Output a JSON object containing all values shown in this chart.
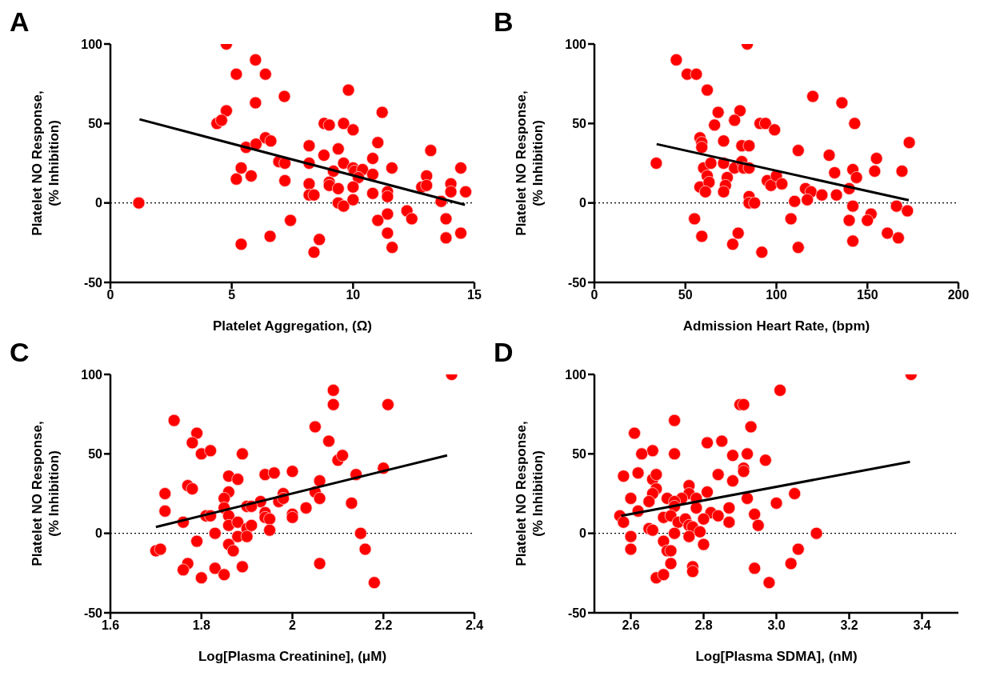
{
  "chart_data": [
    {
      "type": "scatter",
      "title": "A",
      "xlabel": "Platelet Aggregation, (Ω)",
      "ylabel": "Platelet NO Response,\n(% Inhibition)",
      "xlim": [
        0,
        15
      ],
      "xticks": [
        0,
        5,
        10,
        15
      ],
      "ylim": [
        -50,
        100
      ],
      "yticks": [
        -50,
        0,
        50,
        100
      ],
      "ref_lines": [
        {
          "axis": "y",
          "value": 0,
          "line_style": "dotted",
          "color": "#000000"
        }
      ],
      "series": [
        {
          "type": "scatter",
          "marker": "circle",
          "color": "#ff0000",
          "x": [
            1.17,
            4.78,
            5.98,
            5.19,
            6.39,
            7.17,
            5.98,
            9.81,
            4.78,
            4.39,
            4.58,
            11.2,
            8.81,
            9.02,
            9.61,
            10.0,
            6.39,
            6.61,
            5.59,
            6.0,
            8.19,
            11.02,
            9.39,
            13.2,
            8.8,
            6.94,
            7.19,
            8.19,
            9.61,
            10.81,
            5.39,
            11.6,
            14.44,
            9.19,
            10.0,
            10.06,
            10.39,
            10.81,
            10.22,
            5.19,
            5.8,
            7.19,
            13.03,
            8.19,
            9.02,
            9.02,
            12.83,
            13.03,
            14.03,
            14.03,
            14.64,
            9.39,
            10.0,
            8.19,
            8.39,
            10.81,
            11.42,
            11.42,
            13.63,
            9.39,
            9.61,
            10.0,
            12.22,
            12.42,
            11.42,
            11.02,
            7.42,
            13.83,
            6.58,
            11.42,
            13.83,
            14.44,
            5.39,
            8.61,
            8.39,
            11.61
          ],
          "values": [
            0,
            100,
            90,
            81,
            81,
            67,
            63,
            71,
            58,
            50,
            52,
            57,
            50,
            49,
            50,
            46,
            41,
            39,
            35,
            37,
            36,
            38,
            34,
            33,
            30,
            26,
            25,
            25,
            25,
            28,
            22,
            22,
            22,
            20,
            22,
            20,
            21,
            18,
            16,
            15,
            17,
            14,
            17,
            12,
            13,
            11,
            10,
            11,
            12,
            7,
            7,
            9,
            10,
            5,
            5,
            6,
            7,
            4,
            1,
            0,
            -2,
            2,
            -5,
            -10,
            -7,
            -11,
            -11,
            -10,
            -21,
            -19,
            -22,
            -19,
            -26,
            -23,
            -31,
            -28
          ]
        },
        {
          "type": "line",
          "marker": "none",
          "color": "#000000",
          "x": [
            1.2,
            14.61
          ],
          "values": [
            52.6,
            -1.2
          ]
        }
      ]
    },
    {
      "type": "scatter",
      "title": "B",
      "xlabel": "Admission Heart Rate, (bpm)",
      "ylabel": "Platelet NO Response,\n(% Inhibition)",
      "xlim": [
        0,
        200
      ],
      "xticks": [
        0,
        50,
        100,
        150,
        200
      ],
      "ylim": [
        -50,
        100
      ],
      "yticks": [
        -50,
        0,
        50,
        100
      ],
      "ref_lines": [
        {
          "axis": "y",
          "value": 0,
          "line_style": "dotted",
          "color": "#000000"
        }
      ],
      "series": [
        {
          "type": "scatter",
          "marker": "circle",
          "color": "#ff0000",
          "x": [
            84,
            45,
            51,
            56,
            62,
            120,
            136,
            68,
            80,
            77,
            66,
            91,
            94,
            99,
            143,
            58,
            59,
            59,
            71,
            81,
            85,
            112,
            173,
            34,
            129,
            155,
            60,
            64,
            62,
            71,
            77,
            81,
            82,
            85,
            73,
            72,
            71,
            58,
            63,
            61,
            95,
            97,
            100,
            103,
            132,
            142,
            144,
            154,
            169,
            116,
            119,
            125,
            133,
            140,
            85,
            85,
            88,
            110,
            117,
            142,
            166,
            172,
            152,
            150,
            140,
            108,
            55,
            59,
            79,
            76,
            92,
            112,
            142,
            161,
            167
          ],
          "values": [
            100,
            90,
            81,
            81,
            71,
            67,
            63,
            57,
            58,
            52,
            49,
            50,
            50,
            46,
            50,
            41,
            38,
            35,
            39,
            36,
            36,
            33,
            38,
            25,
            30,
            28,
            22,
            25,
            17,
            25,
            22,
            26,
            22,
            22,
            16,
            11,
            7,
            10,
            13,
            7,
            14,
            11,
            17,
            12,
            19,
            21,
            16,
            20,
            20,
            9,
            7,
            5,
            5,
            9,
            4,
            0,
            0,
            1,
            2,
            -2,
            -2,
            -5,
            -7,
            -11,
            -11,
            -10,
            -10,
            -21,
            -19,
            -26,
            -31,
            -28,
            -24,
            -19,
            -22
          ]
        },
        {
          "type": "line",
          "marker": "none",
          "color": "#000000",
          "x": [
            34.2,
            172.7
          ],
          "values": [
            37,
            1.7
          ]
        }
      ]
    },
    {
      "type": "scatter",
      "title": "C",
      "xlabel": "Log[Plasma Creatinine], (μM)",
      "ylabel": "Platelet NO Response,\n(% Inhibition)",
      "xlim": [
        1.6,
        2.4
      ],
      "xticks": [
        1.6,
        1.8,
        2.0,
        2.2,
        2.4
      ],
      "ylim": [
        -50,
        100
      ],
      "yticks": [
        -50,
        0,
        50,
        100
      ],
      "ref_lines": [
        {
          "axis": "y",
          "value": 0,
          "line_style": "dotted",
          "color": "#000000"
        }
      ],
      "series": [
        {
          "type": "scatter",
          "marker": "circle",
          "color": "#ff0000",
          "x": [
            2.35,
            2.09,
            2.09,
            2.21,
            1.74,
            2.05,
            1.79,
            1.78,
            2.08,
            1.8,
            1.82,
            1.89,
            2.1,
            2.11,
            2.2,
            2.0,
            1.94,
            1.96,
            1.86,
            1.88,
            2.14,
            1.77,
            1.78,
            2.06,
            1.72,
            1.86,
            1.85,
            1.98,
            1.97,
            1.98,
            1.93,
            2.05,
            2.06,
            2.13,
            1.72,
            1.85,
            1.86,
            1.86,
            1.9,
            1.91,
            1.81,
            1.82,
            1.76,
            1.88,
            1.94,
            1.94,
            1.95,
            2.0,
            2.0,
            2.03,
            1.9,
            1.91,
            1.95,
            1.83,
            1.88,
            1.9,
            2.15,
            1.79,
            1.86,
            1.87,
            1.7,
            1.71,
            2.16,
            1.77,
            1.76,
            1.83,
            1.89,
            1.8,
            1.85,
            2.06,
            2.18
          ],
          "values": [
            100,
            90,
            81,
            81,
            71,
            67,
            63,
            57,
            58,
            50,
            52,
            50,
            46,
            49,
            41,
            39,
            37,
            38,
            36,
            34,
            37,
            30,
            28,
            33,
            25,
            26,
            22,
            25,
            20,
            22,
            20,
            26,
            22,
            19,
            14,
            16,
            11,
            5,
            17,
            17,
            11,
            11,
            7,
            7,
            13,
            10,
            9,
            12,
            10,
            16,
            3,
            5,
            2,
            0,
            -2,
            -2,
            0,
            -5,
            -7,
            -11,
            -11,
            -10,
            -10,
            -19,
            -23,
            -22,
            -21,
            -28,
            -26,
            -19,
            -31
          ]
        },
        {
          "type": "line",
          "marker": "none",
          "color": "#000000",
          "x": [
            1.7,
            2.34
          ],
          "values": [
            4,
            49
          ]
        }
      ]
    },
    {
      "type": "scatter",
      "title": "D",
      "xlabel": "Log[Plasma SDMA], (nM)",
      "ylabel": "Platelet NO Response,\n(% Inhibition)",
      "xlim": [
        2.5,
        3.5
      ],
      "xticks": [
        {
          "value": 2.6,
          "label": "2.6"
        },
        {
          "value": 2.8,
          "label": "2.8"
        },
        {
          "value": 3.0,
          "label": "3.0"
        },
        {
          "value": 3.2,
          "label": "3.2"
        },
        {
          "value": 3.4,
          "label": "3.4"
        }
      ],
      "ylim": [
        -50,
        100
      ],
      "yticks": [
        -50,
        0,
        50,
        100
      ],
      "ref_lines": [
        {
          "axis": "y",
          "value": 0,
          "line_style": "dotted",
          "color": "#000000"
        }
      ],
      "series": [
        {
          "type": "scatter",
          "marker": "circle",
          "color": "#ff0000",
          "x": [
            3.37,
            3.01,
            2.9,
            2.91,
            2.72,
            2.93,
            2.61,
            2.81,
            2.85,
            2.66,
            2.63,
            2.72,
            2.88,
            2.92,
            2.97,
            2.58,
            2.62,
            2.66,
            2.67,
            2.84,
            2.91,
            2.91,
            2.88,
            2.67,
            2.66,
            2.76,
            2.76,
            2.74,
            2.78,
            2.81,
            3.05,
            2.6,
            2.65,
            2.7,
            2.72,
            2.72,
            2.78,
            2.82,
            2.84,
            2.92,
            3.0,
            2.87,
            2.87,
            2.57,
            2.58,
            2.62,
            2.69,
            2.71,
            2.73,
            2.75,
            2.76,
            2.77,
            2.8,
            2.94,
            2.95,
            2.65,
            2.66,
            2.72,
            2.79,
            2.76,
            2.6,
            3.11,
            2.6,
            2.69,
            2.7,
            2.71,
            2.8,
            2.71,
            2.77,
            2.77,
            2.67,
            2.69,
            2.94,
            2.98,
            3.04,
            3.06
          ],
          "values": [
            100,
            90,
            81,
            81,
            71,
            67,
            63,
            57,
            58,
            52,
            50,
            50,
            49,
            50,
            46,
            36,
            38,
            34,
            37,
            37,
            41,
            39,
            33,
            28,
            25,
            30,
            25,
            22,
            22,
            26,
            25,
            22,
            20,
            22,
            20,
            17,
            16,
            13,
            11,
            22,
            19,
            16,
            7,
            11,
            7,
            14,
            10,
            11,
            7,
            9,
            5,
            4,
            9,
            12,
            5,
            3,
            2,
            0,
            1,
            -2,
            -2,
            0,
            -10,
            -5,
            -11,
            -11,
            -7,
            -19,
            -21,
            -24,
            -28,
            -26,
            -22,
            -31,
            -19,
            -10
          ]
        },
        {
          "type": "line",
          "marker": "none",
          "color": "#000000",
          "x": [
            2.574,
            3.367
          ],
          "values": [
            11,
            45
          ]
        }
      ]
    }
  ]
}
